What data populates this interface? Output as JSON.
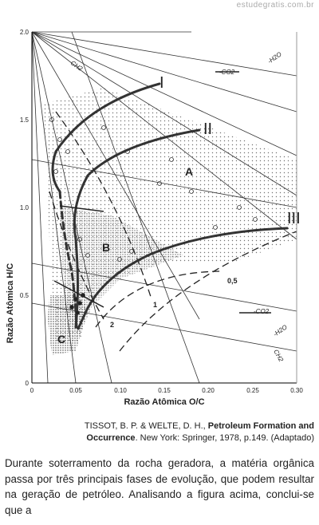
{
  "watermark": "estudegratis.com.br",
  "figure": {
    "y_axis_title": "Razão Atômica H/C",
    "x_axis_title": "Razão Atômica O/C",
    "x_ticks": [
      "0",
      "0.05",
      "0.10",
      "0.15",
      "0.20",
      "0.25",
      "0.30"
    ],
    "y_ticks": [
      "0",
      "0.5",
      "1.0",
      "1.5",
      "2.0"
    ],
    "curve_labels": [
      "I",
      "II",
      "III"
    ],
    "zone_labels": [
      "A",
      "B",
      "C"
    ],
    "isoline_labels": [
      "1",
      "2",
      "0,5"
    ],
    "vector_labels": [
      "CH2",
      "-CO2",
      "-H2O",
      "-CO2",
      "-H2O",
      "CH2"
    ]
  },
  "caption": {
    "authors": "TISSOT, B. P. & WELTE, D. H.,",
    "title": "Petroleum Formation and Occurrence",
    "rest": ". New York: Springer, 1978, p.149. (Adaptado)"
  },
  "body": "Durante soterramento da rocha geradora, a matéria orgânica passa por três principais fases de evolução, que podem resultar na geração de petróleo.  Analisando a figura acima, conclui-se que a"
}
